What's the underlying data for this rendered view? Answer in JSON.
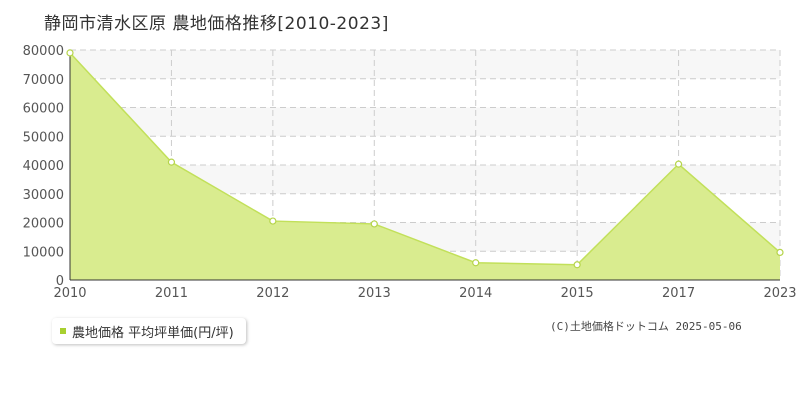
{
  "title": "静岡市清水区原 農地価格推移[2010-2023]",
  "legend": {
    "label": "農地価格 平均坪単価(円/坪)"
  },
  "copyright": "(C)土地価格ドットコム 2025-05-06",
  "colors": {
    "fill": "#d9ec8f",
    "line": "#c2e05a",
    "marker_stroke": "#b5d44a",
    "grid": "#cccccc",
    "band": "#f7f7f7",
    "axis": "#333333",
    "legend_swatch": "#a8d030"
  },
  "chart_data": {
    "type": "area",
    "title": "静岡市清水区原 農地価格推移[2010-2023]",
    "xlabel": "",
    "ylabel": "",
    "ylim": [
      0,
      80000
    ],
    "yticks": [
      0,
      10000,
      20000,
      30000,
      40000,
      50000,
      60000,
      70000,
      80000
    ],
    "ytick_labels": [
      "0",
      "10000",
      "20000",
      "30000",
      "40000",
      "50000",
      "60000",
      "70000",
      "80000"
    ],
    "x": [
      "2010",
      "2011",
      "2012",
      "2013",
      "2014",
      "2015",
      "2017",
      "2023"
    ],
    "series": [
      {
        "name": "農地価格 平均坪単価(円/坪)",
        "values": [
          79000,
          41000,
          20500,
          19500,
          6000,
          5300,
          40300,
          9600
        ]
      }
    ],
    "grid": true,
    "legend_position": "bottom-left"
  }
}
